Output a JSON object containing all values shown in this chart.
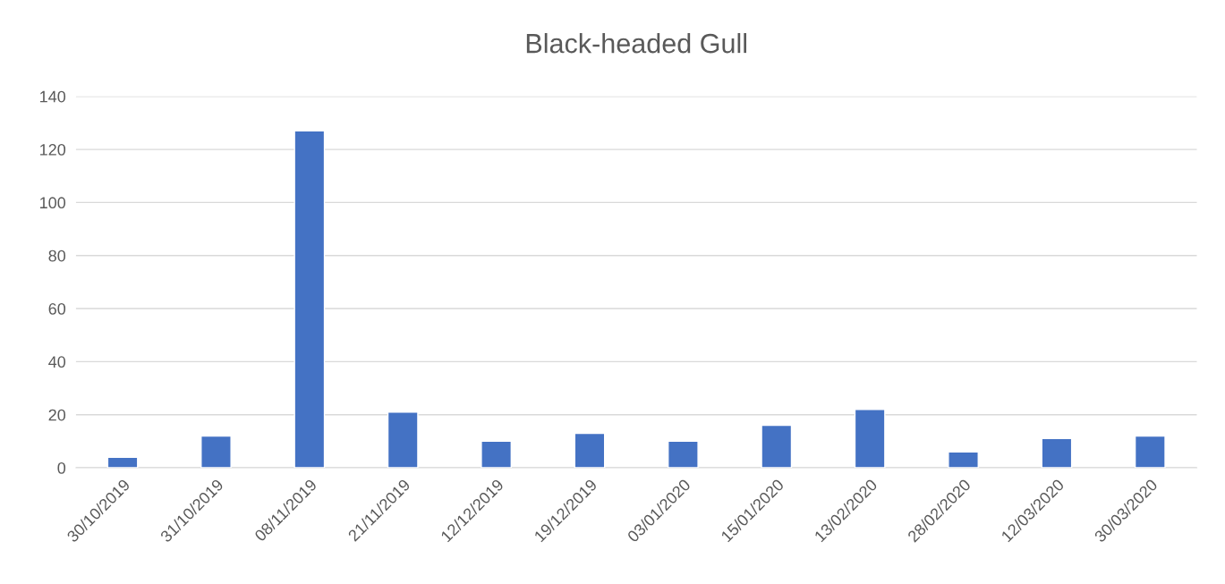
{
  "chart_data": {
    "type": "bar",
    "title": "Black-headed Gull",
    "categories": [
      "30/10/2019",
      "31/10/2019",
      "08/11/2019",
      "21/11/2019",
      "12/12/2019",
      "19/12/2019",
      "03/01/2020",
      "15/01/2020",
      "13/02/2020",
      "28/02/2020",
      "12/03/2020",
      "30/03/2020"
    ],
    "values": [
      4,
      12,
      127,
      21,
      10,
      13,
      10,
      16,
      22,
      6,
      11,
      12
    ],
    "color": "#4472c4",
    "ylim": [
      0,
      140
    ],
    "yticks": [
      0,
      20,
      40,
      60,
      80,
      100,
      120,
      140
    ],
    "grid": "y"
  }
}
